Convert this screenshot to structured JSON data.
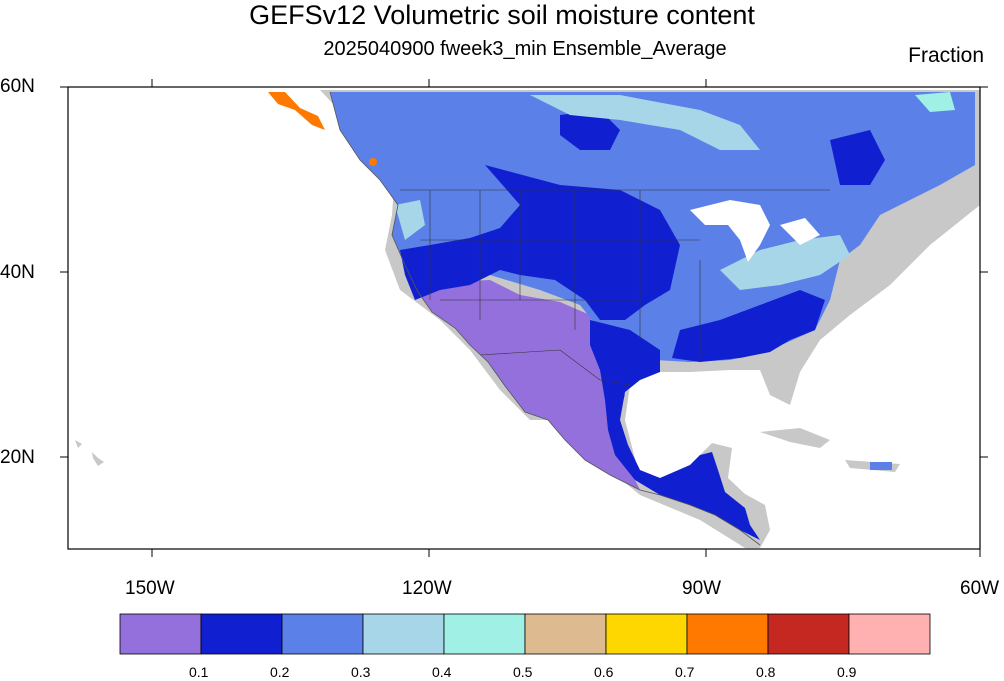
{
  "title": "GEFSv12 Volumetric soil moisture content",
  "subtitle": "2025040900 fweek3_min Ensemble_Average",
  "units": "Fraction",
  "lat_labels": [
    "60N",
    "40N",
    "20N"
  ],
  "lon_labels": [
    "150W",
    "120W",
    "90W",
    "60W"
  ],
  "colorbar": {
    "colors": [
      "#9370db",
      "#1020d0",
      "#5b80e8",
      "#a6d6e8",
      "#a0f0e6",
      "#deba90",
      "#ffd700",
      "#ff7800",
      "#c42820",
      "#ffb0b0"
    ],
    "labels": [
      "0.1",
      "0.2",
      "0.3",
      "0.4",
      "0.5",
      "0.6",
      "0.7",
      "0.8",
      "0.9"
    ]
  },
  "map_colors": {
    "land_nodata": "#c8c8c8",
    "coastline": "#555555"
  }
}
